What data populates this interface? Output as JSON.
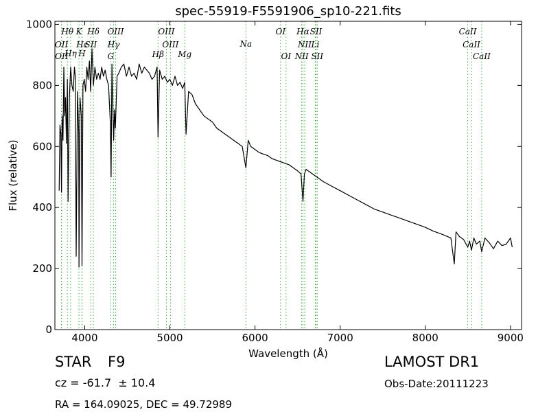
{
  "chart_data": {
    "type": "line",
    "title": "spec-55919-F5591906_sp10-221.fits",
    "xlabel": "Wavelength (Å)",
    "ylabel": "Flux (relative)",
    "xlim": [
      3650,
      9130
    ],
    "ylim": [
      0,
      1010
    ],
    "xticks": [
      4000,
      5000,
      6000,
      7000,
      8000,
      9000
    ],
    "yticks": [
      0,
      200,
      400,
      600,
      800,
      1000
    ],
    "grid": false,
    "legend": "none",
    "line_color": "#000000",
    "marker_line_color": "#44aa44",
    "series": [
      {
        "x": [
          3700,
          3710,
          3720,
          3727,
          3735,
          3745,
          3755,
          3765,
          3775,
          3785,
          3797,
          3805,
          3820,
          3835,
          3850,
          3865,
          3880,
          3889,
          3900,
          3915,
          3930,
          3933,
          3945,
          3960,
          3968,
          3980,
          3995,
          4010,
          4025,
          4040,
          4055,
          4070,
          4085,
          4102,
          4120,
          4140,
          4160,
          4180,
          4200,
          4220,
          4240,
          4260,
          4280,
          4300,
          4310,
          4320,
          4340,
          4350,
          4360,
          4380,
          4400,
          4430,
          4460,
          4490,
          4520,
          4550,
          4580,
          4610,
          4640,
          4670,
          4700,
          4730,
          4760,
          4790,
          4820,
          4850,
          4861,
          4880,
          4910,
          4940,
          4970,
          5000,
          5030,
          5060,
          5090,
          5120,
          5150,
          5175,
          5190,
          5220,
          5260,
          5300,
          5350,
          5400,
          5450,
          5500,
          5550,
          5600,
          5650,
          5700,
          5750,
          5800,
          5850,
          5893,
          5920,
          5950,
          6000,
          6050,
          6100,
          6150,
          6200,
          6250,
          6300,
          6350,
          6400,
          6450,
          6500,
          6540,
          6563,
          6580,
          6600,
          6650,
          6700,
          6750,
          6800,
          6900,
          7000,
          7100,
          7200,
          7300,
          7400,
          7500,
          7600,
          7700,
          7800,
          7900,
          8000,
          8100,
          8200,
          8300,
          8340,
          8360,
          8400,
          8450,
          8498,
          8520,
          8542,
          8570,
          8600,
          8640,
          8662,
          8700,
          8750,
          8800,
          8850,
          8900,
          8950,
          9000,
          9020
        ],
        "y": [
          455,
          670,
          640,
          450,
          700,
          620,
          860,
          700,
          760,
          610,
          820,
          420,
          760,
          860,
          800,
          780,
          860,
          830,
          240,
          780,
          640,
          205,
          760,
          700,
          210,
          800,
          820,
          780,
          860,
          820,
          880,
          780,
          920,
          800,
          860,
          820,
          840,
          820,
          860,
          830,
          850,
          820,
          800,
          680,
          500,
          870,
          620,
          720,
          660,
          830,
          840,
          860,
          870,
          830,
          860,
          830,
          840,
          820,
          870,
          840,
          860,
          850,
          840,
          820,
          830,
          860,
          630,
          850,
          820,
          830,
          810,
          820,
          800,
          830,
          800,
          810,
          790,
          810,
          640,
          780,
          770,
          740,
          720,
          700,
          690,
          680,
          660,
          650,
          640,
          630,
          620,
          610,
          600,
          530,
          620,
          600,
          590,
          580,
          575,
          570,
          560,
          555,
          550,
          545,
          540,
          530,
          520,
          510,
          420,
          510,
          525,
          515,
          505,
          495,
          485,
          470,
          455,
          440,
          425,
          410,
          395,
          385,
          375,
          365,
          355,
          345,
          335,
          322,
          312,
          300,
          215,
          320,
          305,
          295,
          270,
          290,
          260,
          300,
          280,
          290,
          255,
          300,
          285,
          265,
          290,
          275,
          280,
          300,
          270
        ]
      }
    ],
    "annotations": {
      "top_row": [
        {
          "label": "Hθ",
          "x": 3797
        },
        {
          "label": "K",
          "x": 3933
        },
        {
          "label": "Hδ",
          "x": 4102
        },
        {
          "label": "OIII",
          "x": 4363
        },
        {
          "label": "OIII",
          "x": 4959
        },
        {
          "label": "OI",
          "x": 6300
        },
        {
          "label": "Hα",
          "x": 6563
        },
        {
          "label": "SII",
          "x": 6716
        },
        {
          "label": "CaII",
          "x": 8498
        }
      ],
      "second_row": [
        {
          "label": "OII",
          "x": 3727
        },
        {
          "label": "Hε",
          "x": 3970
        },
        {
          "label": "SII",
          "x": 4072
        },
        {
          "label": "Hγ",
          "x": 4340
        },
        {
          "label": "OIII",
          "x": 5007
        },
        {
          "label": "NII",
          "x": 6583
        },
        {
          "label": "Li",
          "x": 6708
        },
        {
          "label": "CaII",
          "x": 8542
        }
      ],
      "third_row": [
        {
          "label": "Hη",
          "x": 3835
        },
        {
          "label": "H",
          "x": 3968
        }
      ],
      "bottom_row": [
        {
          "label": "OII",
          "x": 3729
        },
        {
          "label": "G",
          "x": 4305
        },
        {
          "label": "Hβ",
          "x": 4861
        },
        {
          "label": "Mg",
          "x": 5175
        },
        {
          "label": "Na",
          "x": 5893
        },
        {
          "label": "OI",
          "x": 6364
        },
        {
          "label": "NII",
          "x": 6548
        },
        {
          "label": "SII",
          "x": 6731
        },
        {
          "label": "CaII",
          "x": 8662
        }
      ]
    }
  },
  "info": {
    "class_label": "STAR",
    "subclass": "F9",
    "survey": "LAMOST DR1",
    "cz": "cz = -61.7  ± 10.4",
    "obs_date": "Obs-Date:20111223",
    "radec": "RA = 164.09025, DEC = 49.72989"
  }
}
